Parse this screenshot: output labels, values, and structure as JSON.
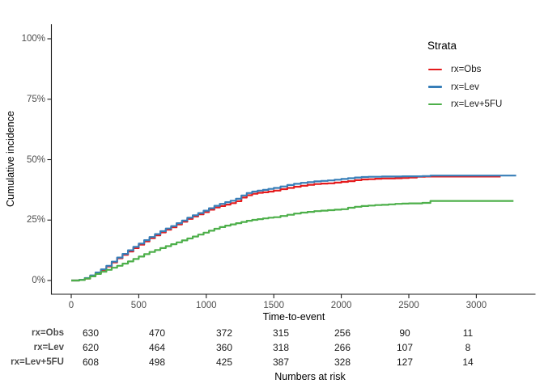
{
  "labels": {
    "y_axis_title": "Cumulative incidence",
    "x_axis_title": "Time-to-event",
    "legend_title": "Strata",
    "risk_table_title": "Numbers at risk"
  },
  "chart_data": {
    "type": "line",
    "subtype": "cumulative-incidence-step",
    "title": "",
    "xlabel": "Time-to-event",
    "ylabel": "Cumulative incidence",
    "xlim": [
      0,
      3300
    ],
    "ylim": [
      0,
      100
    ],
    "x_ticks": [
      0,
      500,
      1000,
      1500,
      2000,
      2500,
      3000
    ],
    "y_tick_labels": [
      "0%",
      "25%",
      "50%",
      "75%",
      "100%"
    ],
    "y_tick_values": [
      0,
      25,
      50,
      75,
      100
    ],
    "grid": false,
    "legend_position": "right",
    "legend_title": "Strata",
    "series": [
      {
        "name": "rx=Obs",
        "color": "#E41A1C",
        "points": [
          [
            0,
            0
          ],
          [
            60,
            0.2
          ],
          [
            100,
            0.8
          ],
          [
            140,
            1.8
          ],
          [
            180,
            3.0
          ],
          [
            220,
            4.3
          ],
          [
            260,
            5.8
          ],
          [
            300,
            7.5
          ],
          [
            340,
            9.2
          ],
          [
            380,
            10.6
          ],
          [
            420,
            12.0
          ],
          [
            460,
            13.4
          ],
          [
            500,
            14.8
          ],
          [
            540,
            16.2
          ],
          [
            580,
            17.5
          ],
          [
            620,
            18.7
          ],
          [
            660,
            19.9
          ],
          [
            700,
            21.0
          ],
          [
            740,
            22.0
          ],
          [
            780,
            23.2
          ],
          [
            820,
            24.3
          ],
          [
            860,
            25.5
          ],
          [
            900,
            26.5
          ],
          [
            940,
            27.4
          ],
          [
            980,
            28.3
          ],
          [
            1020,
            29.3
          ],
          [
            1060,
            30.2
          ],
          [
            1100,
            30.8
          ],
          [
            1140,
            31.4
          ],
          [
            1180,
            32.0
          ],
          [
            1220,
            32.8
          ],
          [
            1260,
            34.3
          ],
          [
            1300,
            35.3
          ],
          [
            1340,
            35.9
          ],
          [
            1380,
            36.3
          ],
          [
            1420,
            36.5
          ],
          [
            1460,
            36.8
          ],
          [
            1500,
            37.2
          ],
          [
            1550,
            37.8
          ],
          [
            1600,
            38.3
          ],
          [
            1650,
            38.8
          ],
          [
            1700,
            39.2
          ],
          [
            1750,
            39.6
          ],
          [
            1800,
            39.9
          ],
          [
            1850,
            40.1
          ],
          [
            1900,
            40.2
          ],
          [
            1950,
            40.5
          ],
          [
            2000,
            40.8
          ],
          [
            2050,
            41.1
          ],
          [
            2100,
            41.5
          ],
          [
            2150,
            41.8
          ],
          [
            2200,
            41.9
          ],
          [
            2250,
            42.1
          ],
          [
            2300,
            42.2
          ],
          [
            2400,
            42.3
          ],
          [
            2450,
            42.4
          ],
          [
            2500,
            42.6
          ],
          [
            2560,
            42.9
          ],
          [
            2620,
            43.0
          ],
          [
            3180,
            43.0
          ]
        ]
      },
      {
        "name": "rx=Lev",
        "color": "#377EB8",
        "points": [
          [
            0,
            0
          ],
          [
            60,
            0.3
          ],
          [
            100,
            1.0
          ],
          [
            140,
            2.1
          ],
          [
            180,
            3.3
          ],
          [
            220,
            4.6
          ],
          [
            260,
            6.1
          ],
          [
            300,
            7.8
          ],
          [
            340,
            9.5
          ],
          [
            380,
            11.0
          ],
          [
            420,
            12.5
          ],
          [
            460,
            13.9
          ],
          [
            500,
            15.3
          ],
          [
            540,
            16.7
          ],
          [
            580,
            18.0
          ],
          [
            620,
            19.2
          ],
          [
            660,
            20.4
          ],
          [
            700,
            21.5
          ],
          [
            740,
            22.5
          ],
          [
            780,
            23.7
          ],
          [
            820,
            24.8
          ],
          [
            860,
            26.0
          ],
          [
            900,
            27.0
          ],
          [
            940,
            27.9
          ],
          [
            980,
            28.9
          ],
          [
            1020,
            29.9
          ],
          [
            1060,
            30.9
          ],
          [
            1100,
            31.7
          ],
          [
            1140,
            32.4
          ],
          [
            1180,
            33.0
          ],
          [
            1220,
            33.8
          ],
          [
            1260,
            35.2
          ],
          [
            1300,
            36.2
          ],
          [
            1340,
            36.8
          ],
          [
            1380,
            37.2
          ],
          [
            1420,
            37.5
          ],
          [
            1460,
            37.9
          ],
          [
            1500,
            38.3
          ],
          [
            1550,
            38.9
          ],
          [
            1600,
            39.5
          ],
          [
            1650,
            40.0
          ],
          [
            1700,
            40.4
          ],
          [
            1750,
            40.7
          ],
          [
            1800,
            41.0
          ],
          [
            1850,
            41.2
          ],
          [
            1900,
            41.4
          ],
          [
            1950,
            41.7
          ],
          [
            2000,
            42.0
          ],
          [
            2050,
            42.3
          ],
          [
            2100,
            42.6
          ],
          [
            2150,
            42.8
          ],
          [
            2200,
            42.9
          ],
          [
            2300,
            43.0
          ],
          [
            2450,
            43.1
          ],
          [
            2600,
            43.2
          ],
          [
            2660,
            43.4
          ],
          [
            3295,
            43.4
          ]
        ]
      },
      {
        "name": "rx=Lev+5FU",
        "color": "#4DAF4A",
        "points": [
          [
            0,
            0
          ],
          [
            60,
            0.2
          ],
          [
            100,
            0.8
          ],
          [
            140,
            1.7
          ],
          [
            180,
            2.7
          ],
          [
            220,
            3.6
          ],
          [
            260,
            4.4
          ],
          [
            300,
            5.3
          ],
          [
            340,
            6.1
          ],
          [
            380,
            7.0
          ],
          [
            420,
            7.9
          ],
          [
            460,
            8.9
          ],
          [
            500,
            9.9
          ],
          [
            540,
            10.9
          ],
          [
            580,
            11.8
          ],
          [
            620,
            12.6
          ],
          [
            660,
            13.4
          ],
          [
            700,
            14.2
          ],
          [
            740,
            15.0
          ],
          [
            780,
            15.8
          ],
          [
            820,
            16.6
          ],
          [
            860,
            17.4
          ],
          [
            900,
            18.2
          ],
          [
            940,
            19.0
          ],
          [
            980,
            19.8
          ],
          [
            1020,
            20.6
          ],
          [
            1060,
            21.4
          ],
          [
            1100,
            22.1
          ],
          [
            1140,
            22.7
          ],
          [
            1180,
            23.2
          ],
          [
            1220,
            23.7
          ],
          [
            1260,
            24.2
          ],
          [
            1300,
            24.7
          ],
          [
            1340,
            25.1
          ],
          [
            1380,
            25.4
          ],
          [
            1420,
            25.7
          ],
          [
            1460,
            26.0
          ],
          [
            1500,
            26.2
          ],
          [
            1550,
            26.7
          ],
          [
            1600,
            27.2
          ],
          [
            1650,
            27.7
          ],
          [
            1700,
            28.1
          ],
          [
            1750,
            28.4
          ],
          [
            1800,
            28.7
          ],
          [
            1850,
            28.9
          ],
          [
            1900,
            29.1
          ],
          [
            1950,
            29.3
          ],
          [
            2000,
            29.5
          ],
          [
            2050,
            30.1
          ],
          [
            2100,
            30.5
          ],
          [
            2150,
            30.8
          ],
          [
            2200,
            31.0
          ],
          [
            2250,
            31.2
          ],
          [
            2300,
            31.3
          ],
          [
            2350,
            31.5
          ],
          [
            2400,
            31.7
          ],
          [
            2450,
            31.8
          ],
          [
            2500,
            31.9
          ],
          [
            2600,
            32.1
          ],
          [
            2660,
            32.9
          ],
          [
            3275,
            32.9
          ]
        ]
      }
    ],
    "numbers_at_risk": {
      "title": "Numbers at risk",
      "times": [
        0,
        500,
        1000,
        1500,
        2000,
        2500,
        3000
      ],
      "rows": [
        {
          "label": "rx=Obs",
          "values": [
            630,
            470,
            372,
            315,
            256,
            90,
            11
          ]
        },
        {
          "label": "rx=Lev",
          "values": [
            620,
            464,
            360,
            318,
            266,
            107,
            8
          ]
        },
        {
          "label": "rx=Lev+5FU",
          "values": [
            608,
            498,
            425,
            387,
            328,
            127,
            14
          ]
        }
      ]
    }
  }
}
